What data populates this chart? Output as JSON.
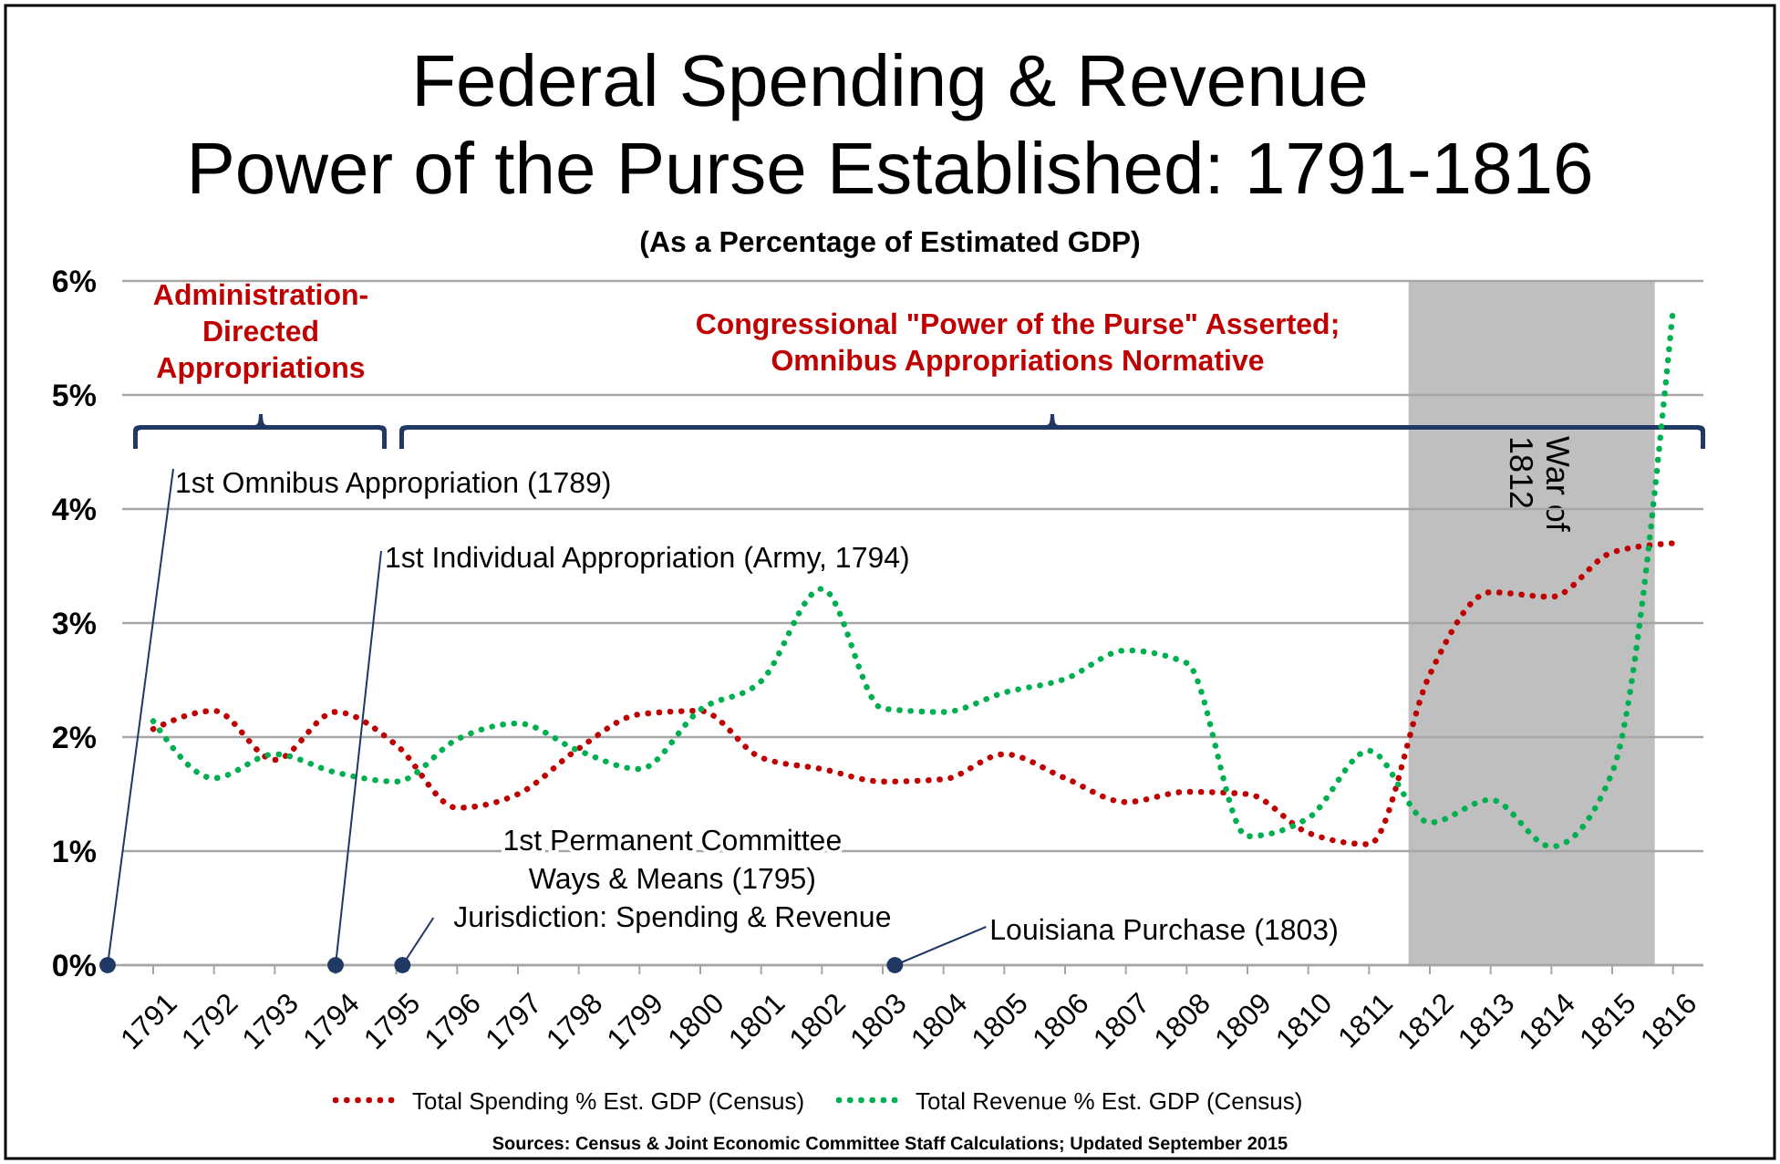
{
  "chart_data": {
    "type": "line",
    "title": "Federal Spending & Revenue\nPower of the Purse Established: 1791-1816",
    "subtitle": "(As a Percentage of Estimated GDP)",
    "x": [
      1791,
      1792,
      1793,
      1794,
      1795,
      1796,
      1797,
      1798,
      1799,
      1800,
      1801,
      1802,
      1803,
      1804,
      1805,
      1806,
      1807,
      1808,
      1809,
      1810,
      1811,
      1812,
      1813,
      1814,
      1815,
      1816
    ],
    "xlim": [
      1790.25,
      1816.5
    ],
    "xticks": [
      1791,
      1792,
      1793,
      1794,
      1795,
      1796,
      1797,
      1798,
      1799,
      1800,
      1801,
      1802,
      1803,
      1804,
      1805,
      1806,
      1807,
      1808,
      1809,
      1810,
      1811,
      1812,
      1813,
      1814,
      1815,
      1816
    ],
    "ylim": [
      0,
      6
    ],
    "yticks": [
      {
        "value": 0,
        "label": "0%"
      },
      {
        "value": 1,
        "label": "1%"
      },
      {
        "value": 2,
        "label": "2%"
      },
      {
        "value": 3,
        "label": "3%"
      },
      {
        "value": 4,
        "label": "4%"
      },
      {
        "value": 5,
        "label": "5%"
      },
      {
        "value": 6,
        "label": "6%"
      }
    ],
    "series": [
      {
        "name": "Total Spending % Est. GDP (Census)",
        "color": "#c00000",
        "values": [
          2.07,
          2.23,
          1.8,
          2.22,
          1.93,
          1.38,
          1.5,
          1.9,
          2.2,
          2.23,
          1.82,
          1.72,
          1.61,
          1.63,
          1.85,
          1.64,
          1.43,
          1.52,
          1.5,
          1.16,
          1.06,
          2.55,
          3.27,
          3.23,
          3.62,
          3.7
        ]
      },
      {
        "name": "Total Revenue % Est. GDP (Census)",
        "color": "#00b050",
        "values": [
          2.14,
          1.64,
          1.85,
          1.69,
          1.61,
          1.98,
          2.12,
          1.88,
          1.72,
          2.24,
          2.49,
          3.3,
          2.25,
          2.22,
          2.39,
          2.51,
          2.76,
          2.65,
          1.13,
          1.29,
          1.88,
          1.25,
          1.45,
          1.04,
          1.69,
          5.75
        ]
      }
    ],
    "bands": [
      {
        "axis": "x",
        "from": 1811.65,
        "to": 1815.7,
        "label": "War of\n1812",
        "color": "#bfbfbf"
      }
    ],
    "annotations": [
      {
        "text": "1st Omnibus Appropriation (1789)",
        "x": 1790.25,
        "y": 0
      },
      {
        "text": "1st Individual Appropriation (Army, 1794)",
        "x": 1794,
        "y": 0
      },
      {
        "text": "1st Permanent Committee\nWays & Means (1795)\nJurisdiction: Spending & Revenue",
        "x": 1795.1,
        "y": 0
      },
      {
        "text": "Louisiana Purchase (1803)",
        "x": 1803.2,
        "y": 0
      },
      "Administration-\nDirected\nAppropriations",
      "Congressional \"Power of the Purse\" Asserted;\nOmnibus Appropriations Normative",
      "Sources: Census & Joint Economic Committee Staff Calculations; Updated September 2015"
    ],
    "grid": "y",
    "legend": "bottom",
    "marker": "none",
    "line_style": "dotted"
  }
}
